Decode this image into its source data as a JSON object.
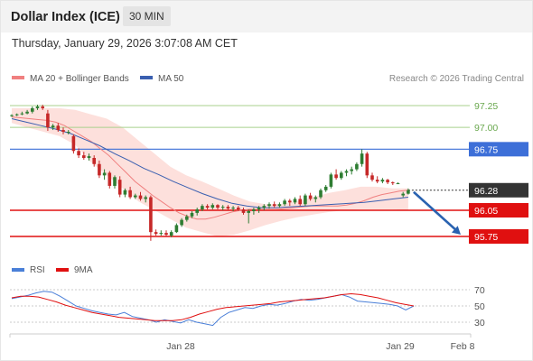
{
  "header": {
    "title": "Dollar Index (ICE)",
    "interval": "30 MIN"
  },
  "timestamp": "Thursday, January 29, 2026 3:07:08 AM CET",
  "copyright": "Research © 2026 Trading Central",
  "colors": {
    "up": "#2e7d32",
    "down": "#c62828",
    "ma20": "#f08080",
    "ma50": "#3a5fb0",
    "bands": "#fde0dc",
    "resistance": "#a8d08d",
    "pivot": "#3d6fd8",
    "support": "#e01010",
    "current": "#333333",
    "arrow": "#2962b0",
    "rsi": "#4a7fd8",
    "rsi_ma": "#e01010"
  },
  "price_legend": {
    "ma20": "MA 20 + Bollinger Bands",
    "ma50": "MA 50"
  },
  "rsi_legend": {
    "rsi": "RSI",
    "ma": "9MA"
  },
  "x_ticks": [
    "Jan 28",
    "Jan 29",
    "Feb 8"
  ],
  "chart_data": [
    {
      "type": "candlestick",
      "title": "Dollar Index (ICE)",
      "y_range": [
        95.62,
        97.38
      ],
      "levels": [
        {
          "label": "97.25",
          "value": 97.25,
          "kind": "resistance"
        },
        {
          "label": "97.00",
          "value": 97.0,
          "kind": "resistance"
        },
        {
          "label": "96.75",
          "value": 96.75,
          "kind": "pivot"
        },
        {
          "label": "96.28",
          "value": 96.28,
          "kind": "current"
        },
        {
          "label": "96.05",
          "value": 96.05,
          "kind": "support"
        },
        {
          "label": "95.75",
          "value": 95.75,
          "kind": "support"
        }
      ],
      "candles": [
        [
          97.13,
          97.15,
          97.12,
          97.14
        ],
        [
          97.14,
          97.16,
          97.13,
          97.15
        ],
        [
          97.15,
          97.18,
          97.14,
          97.16
        ],
        [
          97.16,
          97.2,
          97.15,
          97.18
        ],
        [
          97.18,
          97.24,
          97.16,
          97.22
        ],
        [
          97.22,
          97.26,
          97.2,
          97.24
        ],
        [
          97.24,
          97.26,
          97.2,
          97.22
        ],
        [
          97.16,
          97.2,
          96.96,
          97.0
        ],
        [
          97.0,
          97.04,
          96.97,
          97.02
        ],
        [
          97.02,
          97.05,
          96.95,
          96.97
        ],
        [
          96.97,
          97.0,
          96.92,
          96.95
        ],
        [
          96.94,
          96.97,
          96.92,
          96.95
        ],
        [
          96.9,
          96.92,
          96.7,
          96.73
        ],
        [
          96.73,
          96.76,
          96.65,
          96.68
        ],
        [
          96.68,
          96.72,
          96.63,
          96.65
        ],
        [
          96.65,
          96.7,
          96.62,
          96.67
        ],
        [
          96.65,
          96.68,
          96.55,
          96.58
        ],
        [
          96.58,
          96.62,
          96.42,
          96.45
        ],
        [
          96.45,
          96.52,
          96.4,
          96.48
        ],
        [
          96.48,
          96.5,
          96.3,
          96.33
        ],
        [
          96.33,
          96.45,
          96.3,
          96.43
        ],
        [
          96.4,
          96.44,
          96.2,
          96.23
        ],
        [
          96.23,
          96.3,
          96.2,
          96.28
        ],
        [
          96.28,
          96.32,
          96.18,
          96.2
        ],
        [
          96.2,
          96.24,
          96.18,
          96.22
        ],
        [
          96.22,
          96.26,
          96.16,
          96.18
        ],
        [
          96.18,
          96.22,
          96.14,
          96.2
        ],
        [
          96.2,
          96.22,
          95.7,
          95.8
        ],
        [
          95.8,
          95.83,
          95.76,
          95.78
        ],
        [
          95.78,
          95.82,
          95.76,
          95.79
        ],
        [
          95.79,
          95.82,
          95.75,
          95.77
        ],
        [
          95.76,
          95.82,
          95.74,
          95.8
        ],
        [
          95.8,
          95.9,
          95.79,
          95.88
        ],
        [
          95.88,
          95.96,
          95.86,
          95.94
        ],
        [
          95.94,
          96.0,
          95.92,
          95.98
        ],
        [
          95.98,
          96.04,
          95.96,
          96.02
        ],
        [
          96.02,
          96.08,
          95.99,
          96.06
        ],
        [
          96.06,
          96.12,
          96.04,
          96.1
        ],
        [
          96.1,
          96.12,
          96.06,
          96.08
        ],
        [
          96.08,
          96.13,
          96.06,
          96.11
        ],
        [
          96.11,
          96.12,
          96.06,
          96.08
        ],
        [
          96.08,
          96.11,
          96.05,
          96.09
        ],
        [
          96.09,
          96.11,
          96.05,
          96.07
        ],
        [
          96.07,
          96.1,
          96.04,
          96.08
        ],
        [
          96.08,
          96.1,
          96.04,
          96.06
        ],
        [
          96.06,
          96.08,
          96.0,
          96.02
        ],
        [
          96.02,
          96.06,
          95.9,
          96.04
        ],
        [
          96.04,
          96.08,
          96.0,
          96.06
        ],
        [
          96.06,
          96.1,
          96.02,
          96.08
        ],
        [
          96.08,
          96.12,
          96.05,
          96.1
        ],
        [
          96.1,
          96.14,
          96.07,
          96.12
        ],
        [
          96.12,
          96.15,
          96.08,
          96.1
        ],
        [
          96.1,
          96.14,
          96.08,
          96.12
        ],
        [
          96.12,
          96.18,
          96.1,
          96.16
        ],
        [
          96.16,
          96.18,
          96.1,
          96.14
        ],
        [
          96.14,
          96.2,
          96.12,
          96.18
        ],
        [
          96.18,
          96.22,
          96.1,
          96.12
        ],
        [
          96.12,
          96.24,
          96.1,
          96.22
        ],
        [
          96.22,
          96.25,
          96.16,
          96.18
        ],
        [
          96.18,
          96.22,
          96.14,
          96.2
        ],
        [
          96.2,
          96.3,
          96.18,
          96.28
        ],
        [
          96.28,
          96.34,
          96.26,
          96.32
        ],
        [
          96.32,
          96.48,
          96.3,
          96.46
        ],
        [
          96.46,
          96.52,
          96.4,
          96.42
        ],
        [
          96.42,
          96.5,
          96.4,
          96.48
        ],
        [
          96.48,
          96.52,
          96.44,
          96.5
        ],
        [
          96.5,
          96.55,
          96.46,
          96.52
        ],
        [
          96.52,
          96.6,
          96.5,
          96.58
        ],
        [
          96.58,
          96.75,
          96.55,
          96.7
        ],
        [
          96.7,
          96.72,
          96.42,
          96.45
        ],
        [
          96.45,
          96.48,
          96.38,
          96.4
        ],
        [
          96.4,
          96.44,
          96.36,
          96.38
        ],
        [
          96.38,
          96.42,
          96.36,
          96.4
        ],
        [
          96.4,
          96.41,
          96.35,
          96.37
        ],
        [
          96.37,
          96.38,
          96.34,
          96.36
        ],
        [
          96.36,
          96.37,
          96.35,
          96.36
        ],
        [
          96.22,
          96.26,
          96.2,
          96.24
        ],
        [
          96.24,
          96.3,
          96.23,
          96.28
        ]
      ],
      "ma20": [
        97.12,
        97.11,
        97.1,
        97.09,
        97.08,
        97.06,
        97.02,
        96.96,
        96.9,
        96.84,
        96.76,
        96.68,
        96.58,
        96.48,
        96.38,
        96.3,
        96.22,
        96.15,
        96.08,
        96.02,
        95.98,
        95.95,
        95.95,
        95.97,
        96.0,
        96.03,
        96.05,
        96.06,
        96.06,
        96.06,
        96.06,
        96.07,
        96.08,
        96.09,
        96.1,
        96.1,
        96.1,
        96.1,
        96.11,
        96.13,
        96.16,
        96.2,
        96.23,
        96.25,
        96.27,
        96.28
      ],
      "ma50": [
        97.1,
        97.06,
        97.02,
        96.98,
        96.93,
        96.86,
        96.79,
        96.7,
        96.62,
        96.53,
        96.46,
        96.38,
        96.31,
        96.24,
        96.18,
        96.13,
        96.1,
        96.08,
        96.08,
        96.09,
        96.1,
        96.11,
        96.12,
        96.13,
        96.14,
        96.16,
        96.18,
        96.2
      ],
      "bollinger_upper": [
        97.22,
        97.22,
        97.22,
        97.22,
        97.2,
        97.15,
        97.1,
        97.0,
        96.85,
        96.7,
        96.55,
        96.45,
        96.38,
        96.3,
        96.22,
        96.15,
        96.12,
        96.12,
        96.15,
        96.2,
        96.25,
        96.28,
        96.32,
        96.32,
        96.3,
        96.3
      ],
      "bollinger_lower": [
        97.05,
        97.0,
        96.95,
        96.9,
        96.8,
        96.6,
        96.45,
        96.3,
        96.15,
        96.05,
        95.95,
        95.85,
        95.8,
        95.75,
        95.77,
        95.82,
        95.88,
        95.93,
        95.97,
        96.0,
        96.03,
        96.05,
        96.06,
        96.06,
        96.06,
        96.05
      ],
      "projection": {
        "from": 96.28,
        "to": 95.75
      }
    },
    {
      "type": "line",
      "title": "RSI",
      "y_range": [
        20,
        80
      ],
      "y_ticks": [
        70,
        50,
        30
      ],
      "series": [
        {
          "name": "RSI",
          "values": [
            59,
            61,
            63,
            66,
            68,
            67,
            62,
            56,
            50,
            47,
            44,
            42,
            40,
            39,
            42,
            37,
            35,
            33,
            30,
            33,
            31,
            29,
            33,
            30,
            28,
            26,
            36,
            42,
            45,
            48,
            47,
            50,
            52,
            51,
            53,
            56,
            58,
            57,
            58,
            60,
            62,
            64,
            61,
            56,
            55,
            54,
            53,
            52,
            50,
            45,
            50
          ]
        },
        {
          "name": "9MA",
          "values": [
            60,
            62,
            62,
            61,
            58,
            55,
            51,
            48,
            45,
            42,
            40,
            38,
            36,
            35,
            34,
            33,
            32,
            32,
            32,
            33,
            36,
            40,
            43,
            46,
            48,
            49,
            50,
            51,
            52,
            53,
            55,
            56,
            57,
            58,
            59,
            60,
            62,
            64,
            65,
            64,
            62,
            60,
            57,
            54,
            52,
            50
          ]
        }
      ]
    }
  ]
}
